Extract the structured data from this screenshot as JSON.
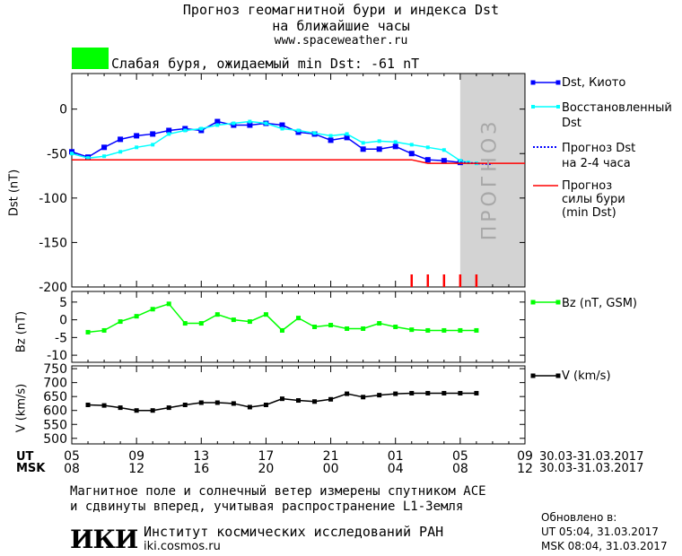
{
  "header": {
    "title_line1": "Прогноз геомагнитной бури и индекса Dst",
    "title_line2": "на ближайшие часы",
    "url": "www.spaceweather.ru",
    "status_text": "Слабая буря, ожидаемый min Dst: -61 nT",
    "status_color": "#00ff00"
  },
  "colors": {
    "dst_kyoto": "#0000ff",
    "dst_restored": "#00ffff",
    "storm_line": "#ff0000",
    "bz": "#00ff00",
    "v": "#000000",
    "forecast_band": "#d3d3d3"
  },
  "forecast_band_label": "ПРОГНОЗ",
  "time_axis": {
    "ut_label": "UT",
    "msk_label": "MSK",
    "ut_ticks": [
      "05",
      "09",
      "13",
      "17",
      "21",
      "01",
      "05",
      "09"
    ],
    "msk_ticks": [
      "08",
      "12",
      "16",
      "20",
      "00",
      "04",
      "08",
      "12"
    ],
    "ut_dates": "30.03-31.03.2017",
    "msk_dates": "30.03-31.03.2017"
  },
  "chart_data": [
    {
      "type": "line",
      "panel": "dst",
      "ylabel": "Dst (nT)",
      "ylim": [
        -200,
        40
      ],
      "yticks": [
        0,
        -50,
        -100,
        -150,
        -200
      ],
      "xlim": [
        0,
        28
      ],
      "forecast_start_hour": 24,
      "forecast_end_hour": 28,
      "series": [
        {
          "name": "Dst, Киото",
          "x": [
            0,
            1,
            2,
            3,
            4,
            5,
            6,
            7,
            8,
            9,
            10,
            11,
            12,
            13,
            14,
            15,
            16,
            17,
            18,
            19,
            20,
            21,
            22,
            23,
            24
          ],
          "values": [
            -48,
            -54,
            -43,
            -34,
            -30,
            -28,
            -24,
            -22,
            -24,
            -14,
            -18,
            -18,
            -16,
            -18,
            -26,
            -28,
            -35,
            -32,
            -45,
            -45,
            -42,
            -50,
            -57,
            -58,
            -60
          ]
        },
        {
          "name": "Восстановленный Dst",
          "x": [
            0,
            1,
            2,
            3,
            4,
            5,
            6,
            7,
            8,
            9,
            10,
            11,
            12,
            13,
            14,
            15,
            16,
            17,
            18,
            19,
            20,
            21,
            22,
            23,
            24,
            24.5,
            25
          ],
          "values": [
            -50,
            -55,
            -53,
            -48,
            -43,
            -40,
            -28,
            -24,
            -22,
            -18,
            -16,
            -14,
            -16,
            -22,
            -24,
            -27,
            -30,
            -28,
            -38,
            -36,
            -37,
            -40,
            -43,
            -46,
            -58,
            -60,
            -61
          ]
        },
        {
          "name": "Прогноз Dst\nна 2-4 часа",
          "x": [
            24,
            25,
            26
          ],
          "values": [
            -60,
            -61,
            -62
          ]
        },
        {
          "name": "Прогноз\nсилы бури\n(min Dst)",
          "x": [
            0,
            21,
            22,
            28
          ],
          "values": [
            -57,
            -57,
            -61,
            -61
          ]
        }
      ],
      "forecast_markers_hours": [
        21,
        22,
        23,
        24,
        25
      ]
    },
    {
      "type": "line",
      "panel": "bz",
      "ylabel": "Bz (nT)",
      "ylim": [
        -12,
        8
      ],
      "yticks": [
        5,
        0,
        -5,
        -10
      ],
      "xlim": [
        0,
        28
      ],
      "series": [
        {
          "name": "Bz (nT, GSM)",
          "x": [
            1,
            2,
            3,
            4,
            5,
            6,
            7,
            8,
            9,
            10,
            11,
            12,
            13,
            14,
            15,
            16,
            17,
            18,
            19,
            20,
            21,
            22,
            23,
            24,
            25
          ],
          "values": [
            -3.5,
            -3,
            -0.5,
            1,
            3,
            4.5,
            -1,
            -1,
            1.5,
            0,
            -0.5,
            1.5,
            -3,
            0.5,
            -2,
            -1.5,
            -2.5,
            -2.5,
            -1,
            -2,
            -2.8,
            -3,
            -3,
            -3,
            -3
          ]
        }
      ]
    },
    {
      "type": "line",
      "panel": "v",
      "ylabel": "V (km/s)",
      "ylim": [
        480,
        760
      ],
      "yticks": [
        750,
        700,
        650,
        600,
        550,
        500
      ],
      "xlim": [
        0,
        28
      ],
      "series": [
        {
          "name": "V (km/s)",
          "x": [
            1,
            2,
            3,
            4,
            5,
            6,
            7,
            8,
            9,
            10,
            11,
            12,
            13,
            14,
            15,
            16,
            17,
            18,
            19,
            20,
            21,
            22,
            23,
            24,
            25
          ],
          "values": [
            620,
            618,
            610,
            600,
            600,
            610,
            620,
            628,
            628,
            625,
            612,
            620,
            642,
            636,
            632,
            640,
            660,
            648,
            655,
            660,
            662,
            662,
            662,
            662,
            662
          ]
        }
      ]
    }
  ],
  "footer": {
    "line1": "Магнитное поле и солнечный ветер измерены спутником ACE",
    "line2": "и сдвинуты вперед, учитывая распространение L1-Земля",
    "logo": "ИКИ",
    "institute": "Институт космических исследований РАН",
    "institute_url": "iki.cosmos.ru",
    "updated_label": "Обновлено в:",
    "updated_ut": "UT  05:04, 31.03.2017",
    "updated_msk": "MSK 08:04, 31.03.2017"
  }
}
